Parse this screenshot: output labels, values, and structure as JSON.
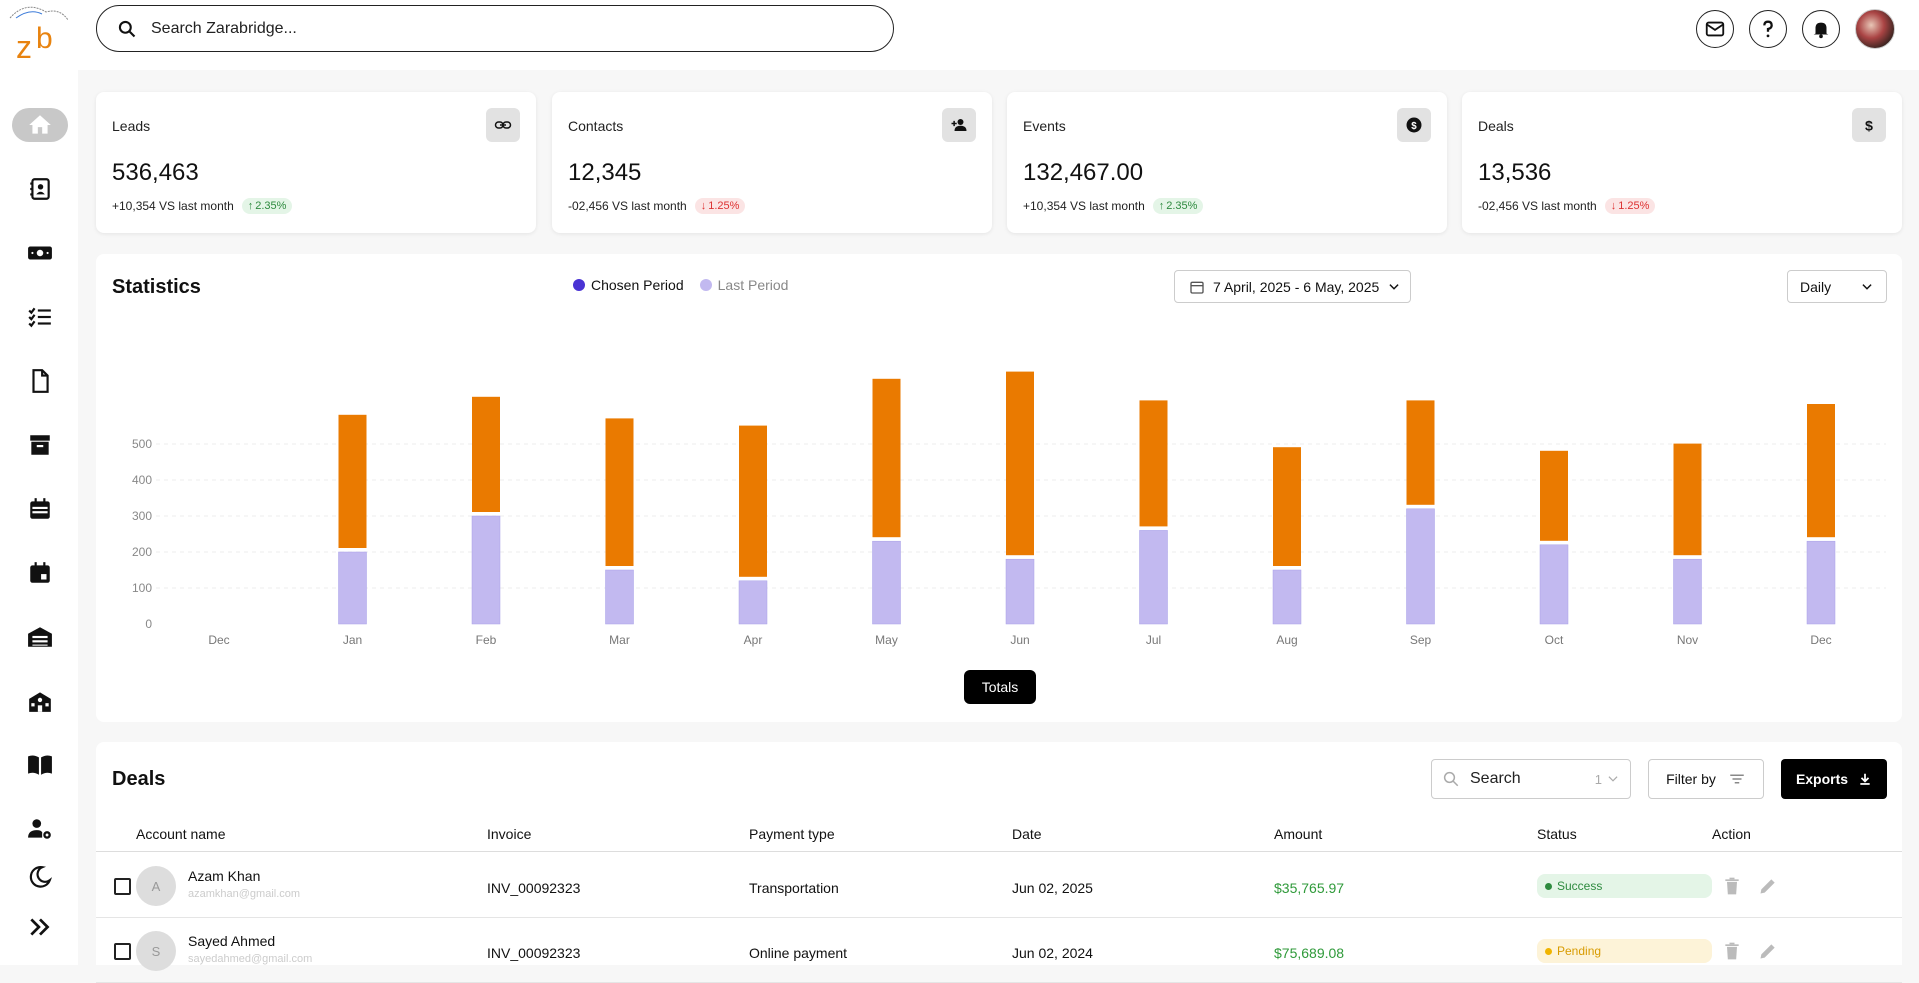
{
  "search": {
    "placeholder": "Search Zarabridge..."
  },
  "cards": [
    {
      "title": "Leads",
      "value": "536,463",
      "change": "+10,354 VS last month",
      "pct": "2.35%",
      "dir": "up",
      "icon": "link-icon"
    },
    {
      "title": "Contacts",
      "value": "12,345",
      "change": "-02,456 VS last month",
      "pct": "1.25%",
      "dir": "down",
      "icon": "person-add-icon"
    },
    {
      "title": "Events",
      "value": "132,467.00",
      "change": "+10,354 VS last month",
      "pct": "2.35%",
      "dir": "up",
      "icon": "dollar-circle-icon"
    },
    {
      "title": "Deals",
      "value": "13,536",
      "change": "-02,456 VS last month",
      "pct": "1.25%",
      "dir": "down",
      "icon": "dollar-icon"
    }
  ],
  "statistics": {
    "title": "Statistics",
    "legend": [
      "Chosen Period",
      "Last Period"
    ],
    "date_range": "7 April, 2025 - 6 May, 2025",
    "period": "Daily",
    "totals_label": "Totals"
  },
  "chart_data": {
    "type": "bar",
    "categories": [
      "Dec",
      "Jan",
      "Feb",
      "Mar",
      "Apr",
      "May",
      "Jun",
      "Jul",
      "Aug",
      "Sep",
      "Oct",
      "Nov",
      "Dec"
    ],
    "series": [
      {
        "name": "Last Period",
        "color": "#c2b9f0",
        "values": [
          0,
          200,
          300,
          150,
          120,
          230,
          180,
          260,
          150,
          320,
          220,
          180,
          230
        ]
      },
      {
        "name": "Chosen Period",
        "color": "#ea7a00",
        "values": [
          0,
          370,
          320,
          410,
          420,
          440,
          510,
          350,
          330,
          290,
          250,
          310,
          370
        ]
      }
    ],
    "y_ticks": [
      0,
      100,
      200,
      300,
      400,
      500
    ],
    "ylim": [
      0,
      700
    ],
    "grid": true
  },
  "deals": {
    "title": "Deals",
    "search_placeholder": "Search",
    "search_count": "1",
    "filter_label": "Filter by",
    "export_label": "Exports",
    "columns": [
      "Account name",
      "Invoice",
      "Payment type",
      "Date",
      "Amount",
      "Status",
      "Action"
    ],
    "rows": [
      {
        "initial": "A",
        "name": "Azam Khan",
        "email": "azamkhan@gmail.com",
        "invoice": "INV_00092323",
        "payment": "Transportation",
        "date": "Jun 02, 2025",
        "amount": "$35,765.97",
        "status": "Success"
      },
      {
        "initial": "S",
        "name": "Sayed Ahmed",
        "email": "sayedahmed@gmail.com",
        "invoice": "INV_00092323",
        "payment": "Online payment",
        "date": "Jun 02, 2024",
        "amount": "$75,689.08",
        "status": "Pending"
      }
    ]
  }
}
